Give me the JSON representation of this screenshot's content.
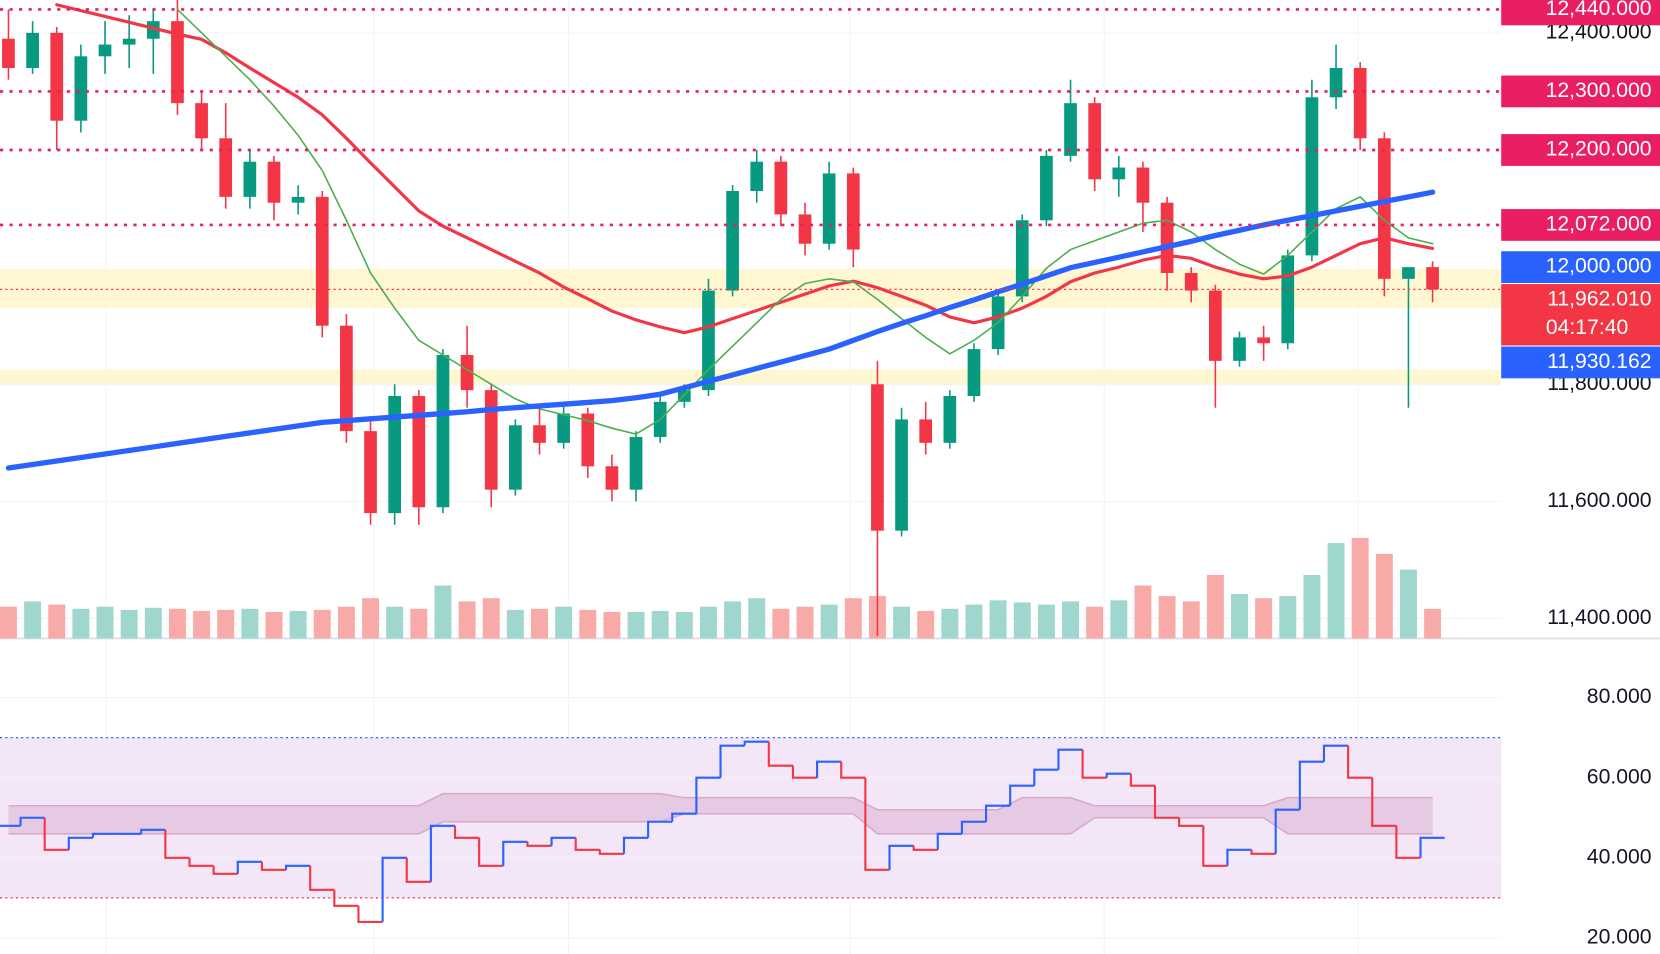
{
  "chart_data": [
    {
      "type": "candlestick",
      "candles": {
        "open": [
          12390,
          12340,
          12400,
          12250,
          12360,
          12380,
          12390,
          12420,
          12280,
          12220,
          12120,
          12180,
          12110,
          12120,
          11900,
          11720,
          11580,
          11780,
          11590,
          11850,
          11790,
          11620,
          11730,
          11700,
          11750,
          11660,
          11620,
          11710,
          11770,
          11790,
          11960,
          12130,
          12180,
          12090,
          12040,
          12160,
          11800,
          11550,
          11740,
          11700,
          11780,
          11860,
          11950,
          12080,
          12190,
          12280,
          12150,
          12170,
          12110,
          11990,
          11960,
          11840,
          11880,
          11870,
          12020,
          12290,
          12340,
          12220,
          11980,
          12000
        ],
        "high": [
          12440,
          12420,
          12410,
          12380,
          12420,
          12430,
          12440,
          12460,
          12300,
          12280,
          12200,
          12190,
          12140,
          12130,
          11920,
          11740,
          11800,
          11790,
          11860,
          11900,
          11800,
          11740,
          11760,
          11770,
          11760,
          11680,
          11720,
          11780,
          11800,
          11980,
          12140,
          12200,
          12190,
          12110,
          12180,
          12170,
          11840,
          11760,
          11770,
          11790,
          11870,
          11960,
          12090,
          12200,
          12320,
          12290,
          12190,
          12180,
          12120,
          12000,
          11970,
          11890,
          11900,
          12030,
          12320,
          12380,
          12350,
          12230,
          12000,
          12010
        ],
        "low": [
          12320,
          12330,
          12200,
          12230,
          12330,
          12340,
          12330,
          12260,
          12200,
          12100,
          12100,
          12080,
          12090,
          11880,
          11700,
          11560,
          11560,
          11560,
          11580,
          11760,
          11590,
          11610,
          11680,
          11690,
          11640,
          11600,
          11600,
          11700,
          11760,
          11780,
          11950,
          12110,
          12070,
          12020,
          12030,
          12000,
          11370,
          11540,
          11680,
          11690,
          11770,
          11850,
          11940,
          12070,
          12180,
          12130,
          12120,
          12060,
          11960,
          11940,
          11760,
          11830,
          11840,
          11860,
          12010,
          12270,
          12200,
          11950,
          11760,
          11940
        ],
        "close": [
          12340,
          12400,
          12250,
          12360,
          12380,
          12390,
          12420,
          12280,
          12220,
          12120,
          12180,
          12110,
          12120,
          11900,
          11720,
          11580,
          11780,
          11590,
          11850,
          11790,
          11620,
          11730,
          11700,
          11750,
          11660,
          11620,
          11710,
          11770,
          11790,
          11960,
          12130,
          12180,
          12090,
          12040,
          12160,
          12030,
          11550,
          11740,
          11700,
          11780,
          11860,
          11950,
          12080,
          12190,
          12280,
          12150,
          12170,
          12110,
          11990,
          11960,
          11840,
          11880,
          11870,
          12020,
          12290,
          12340,
          12220,
          11980,
          12000,
          11962.01
        ]
      },
      "up_color": "#089981",
      "down_color": "#f23645",
      "volume": [
        30,
        35,
        32,
        28,
        30,
        27,
        29,
        28,
        26,
        27,
        28,
        25,
        26,
        27,
        30,
        38,
        30,
        28,
        50,
        35,
        38,
        27,
        28,
        30,
        27,
        25,
        25,
        26,
        25,
        30,
        35,
        38,
        28,
        30,
        32,
        38,
        40,
        30,
        26,
        28,
        32,
        36,
        34,
        32,
        35,
        30,
        36,
        50,
        40,
        35,
        60,
        42,
        38,
        40,
        60,
        90,
        95,
        80,
        65,
        28
      ],
      "volume_up_color": "#9fd6cd",
      "volume_down_color": "#f7aaa8",
      "moving_averages": [
        {
          "color": "#f23645",
          "width": 3,
          "values": [
            null,
            null,
            12448,
            12438,
            12428,
            12418,
            12408,
            12398,
            12389,
            12366,
            12340,
            12315,
            12290,
            12260,
            12220,
            12178,
            12137,
            12096,
            12070,
            12050,
            12030,
            12010,
            11990,
            11966,
            11946,
            11925,
            11910,
            11898,
            11888,
            11898,
            11912,
            11926,
            11940,
            11954,
            11968,
            11976,
            11965,
            11950,
            11935,
            11915,
            11905,
            11915,
            11930,
            11950,
            11975,
            11990,
            12000,
            12012,
            12020,
            12015,
            12000,
            11988,
            11980,
            11985,
            12000,
            12020,
            12040,
            12050,
            12040,
            12032
          ]
        },
        {
          "color": "#4caf50",
          "width": 1.5,
          "values": [
            null,
            null,
            null,
            null,
            null,
            null,
            null,
            12440,
            12400,
            12360,
            12320,
            12275,
            12225,
            12165,
            12080,
            11990,
            11930,
            11875,
            11850,
            11825,
            11800,
            11775,
            11758,
            11748,
            11738,
            11725,
            11715,
            11740,
            11782,
            11825,
            11865,
            11905,
            11945,
            11972,
            11980,
            11975,
            11945,
            11912,
            11880,
            11852,
            11875,
            11905,
            11950,
            11998,
            12030,
            12045,
            12060,
            12075,
            12080,
            12060,
            12030,
            12005,
            11988,
            12020,
            12060,
            12100,
            12120,
            12080,
            12050,
            12040
          ]
        },
        {
          "color": "#2962ff",
          "width": 5,
          "values": [
            11657,
            11663,
            11669,
            11675,
            11681,
            11687,
            11693,
            11699,
            11705,
            11711,
            11717,
            11723,
            11729,
            11735,
            11738,
            11741,
            11744,
            11747,
            11750,
            11753,
            11757,
            11760,
            11763,
            11766,
            11769,
            11772,
            11777,
            11783,
            11794,
            11805,
            11816,
            11827,
            11838,
            11849,
            11860,
            11875,
            11890,
            11904,
            11917,
            11931,
            11944,
            11958,
            11971,
            11985,
            11999,
            12008,
            12017,
            12026,
            12035,
            12044,
            12054,
            12063,
            12072,
            12080,
            12088,
            12096,
            12104,
            12112,
            12120,
            12128
          ]
        }
      ],
      "ylim": [
        11366,
        12456
      ],
      "yticks": [
        {
          "value": 12400,
          "label": "12,400.000"
        },
        {
          "value": 11800,
          "label": "11,800.000"
        },
        {
          "value": 11600,
          "label": "11,600.000"
        },
        {
          "value": 11400,
          "label": "11,400.000"
        }
      ],
      "zones": [
        {
          "from": 11930,
          "to": 11997,
          "color": "#fff7d1"
        },
        {
          "from": 11798,
          "to": 11825,
          "color": "#fff7d1"
        }
      ],
      "price_tags": [
        {
          "value": 12440,
          "label": "12,440.000",
          "color": "#e91e63",
          "line": true
        },
        {
          "value": 12300,
          "label": "12,300.000",
          "color": "#e91e63",
          "line": true
        },
        {
          "value": 12200,
          "label": "12,200.000",
          "color": "#e91e63",
          "line": true
        },
        {
          "value": 12072,
          "label": "12,072.000",
          "color": "#e91e63",
          "line": true
        },
        {
          "value": 12000,
          "label": "12,000.000",
          "color": "#2962ff",
          "line": false
        },
        {
          "value": 11962.01,
          "label": "11,962.010",
          "sublabel": "04:17:40",
          "color": "#f23645",
          "line": true
        },
        {
          "value": 11930.162,
          "label": "11,930.162",
          "color": "#2962ff",
          "line": false
        }
      ]
    },
    {
      "type": "rsi",
      "values": [
        48,
        50,
        42,
        45,
        46,
        46,
        47,
        40,
        38,
        36,
        39,
        37,
        38,
        32,
        28,
        24,
        40,
        34,
        48,
        45,
        38,
        44,
        43,
        45,
        42,
        41,
        45,
        49,
        51,
        60,
        68,
        69,
        63,
        60,
        64,
        60,
        37,
        43,
        42,
        46,
        49,
        53,
        58,
        62,
        67,
        60,
        61,
        58,
        50,
        48,
        38,
        42,
        41,
        52,
        64,
        68,
        60,
        48,
        40,
        45
      ],
      "up_color": "#2962ff",
      "down_color": "#f23645",
      "band": {
        "color": "#d8a9cf",
        "upper": [
          53,
          53,
          53,
          53,
          53,
          53,
          53,
          53,
          53,
          53,
          53,
          53,
          53,
          53,
          53,
          53,
          53,
          53,
          56,
          56,
          56,
          56,
          56,
          56,
          56,
          56,
          56,
          56,
          55,
          55,
          55,
          55,
          55,
          55,
          55,
          55,
          52,
          52,
          52,
          52,
          52,
          52,
          55,
          55,
          55,
          53,
          53,
          53,
          53,
          53,
          53,
          53,
          53,
          55,
          55,
          55,
          55,
          55,
          55,
          55
        ],
        "lower": [
          46,
          46,
          46,
          46,
          46,
          46,
          46,
          46,
          46,
          46,
          46,
          46,
          46,
          46,
          46,
          46,
          46,
          46,
          49,
          49,
          49,
          49,
          49,
          49,
          49,
          49,
          49,
          49,
          51,
          51,
          51,
          51,
          51,
          51,
          51,
          51,
          46,
          46,
          46,
          46,
          46,
          46,
          46,
          46,
          46,
          50,
          50,
          50,
          50,
          50,
          50,
          50,
          50,
          46,
          46,
          46,
          46,
          46,
          46,
          46
        ]
      },
      "background_color": "#f3e6f6",
      "levels": [
        {
          "value": 70,
          "color": "#2962ff"
        },
        {
          "value": 30,
          "color": "#f23645"
        }
      ],
      "ylim": [
        16,
        94.5
      ],
      "yticks": [
        {
          "value": 80,
          "label": "80.000"
        },
        {
          "value": 60,
          "label": "60.000"
        },
        {
          "value": 40,
          "label": "40.000"
        },
        {
          "value": 20,
          "label": "20.000"
        }
      ]
    }
  ]
}
